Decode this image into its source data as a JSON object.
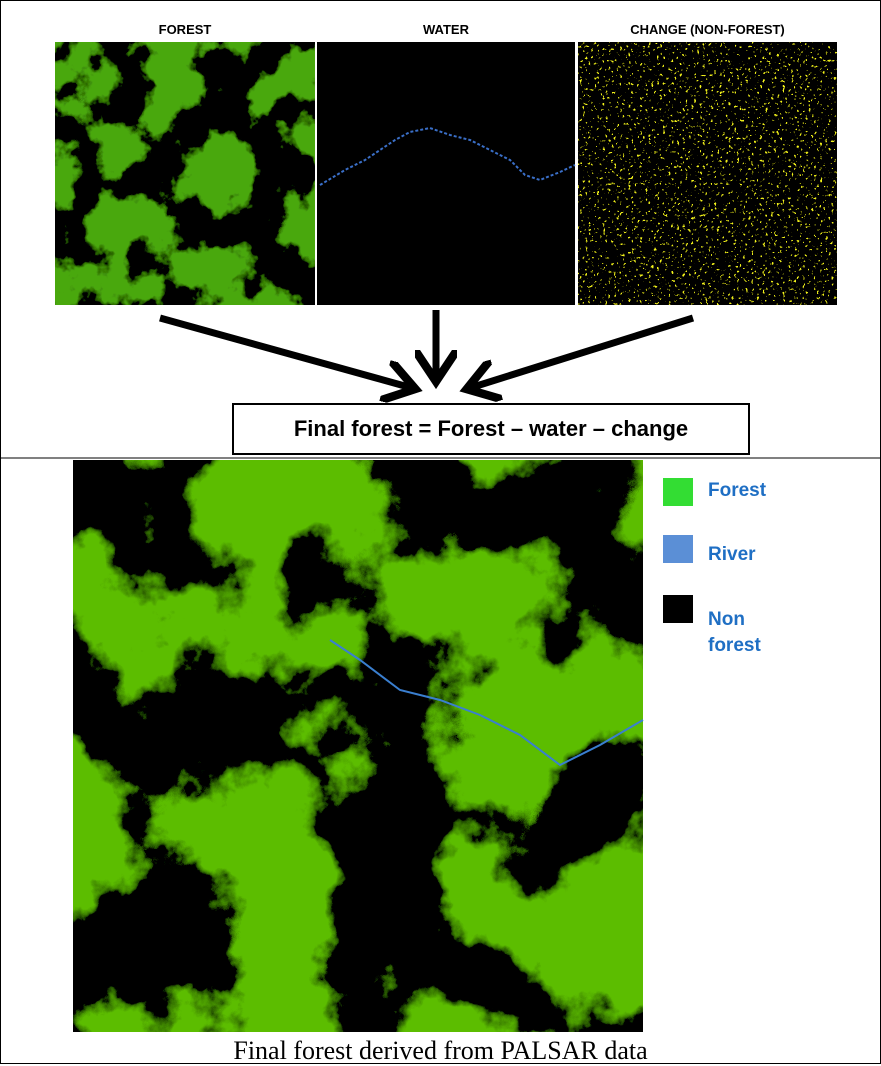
{
  "panels": [
    {
      "title": "FOREST"
    },
    {
      "title": "WATER"
    },
    {
      "title": "CHANGE (NON-FOREST)"
    }
  ],
  "formula": "Final forest = Forest – water – change",
  "legend": {
    "items": [
      {
        "label": "Forest"
      },
      {
        "label": "River"
      },
      {
        "label": "Non forest"
      }
    ]
  },
  "caption": "Final forest derived from PALSAR data"
}
